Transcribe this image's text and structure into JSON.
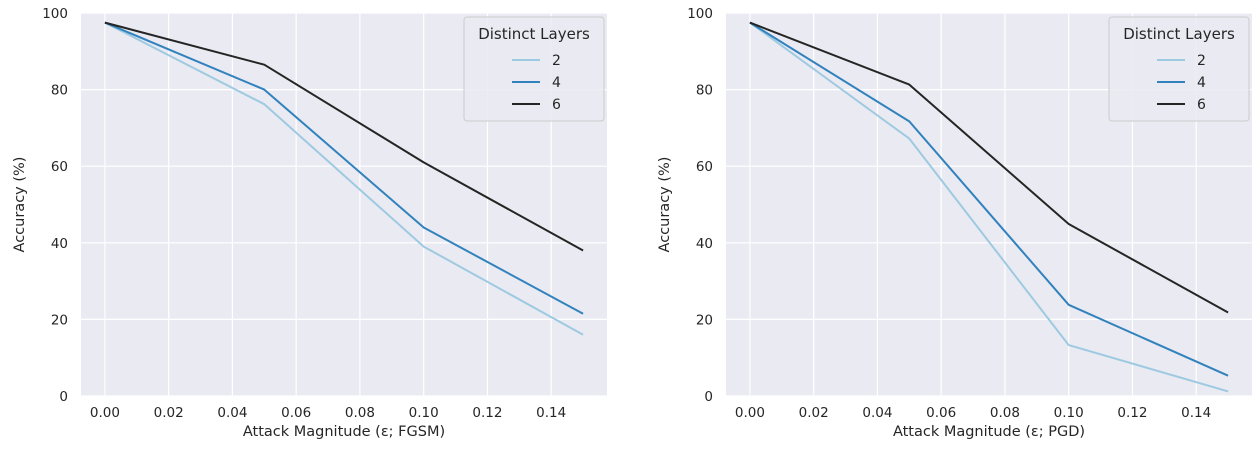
{
  "chart_data": [
    {
      "type": "line",
      "title": "",
      "xlabel": "Attack Magnitude (ε; FGSM)",
      "ylabel": "Accuracy (%)",
      "xlim": [
        -0.0075,
        0.1575
      ],
      "ylim": [
        0,
        100
      ],
      "xticks": [
        "0.00",
        "0.02",
        "0.04",
        "0.06",
        "0.08",
        "0.10",
        "0.12",
        "0.14"
      ],
      "yticks": [
        "0",
        "20",
        "40",
        "60",
        "80",
        "100"
      ],
      "x": [
        0.0,
        0.05,
        0.1,
        0.15
      ],
      "legend_title": "Distinct Layers",
      "legend_position": "top-right",
      "grid": true,
      "background": "#eaeaf2",
      "series": [
        {
          "name": "2",
          "color": "#9ecae1",
          "values": [
            97.5,
            76.2,
            39.0,
            16.0
          ]
        },
        {
          "name": "4",
          "color": "#3182bd",
          "values": [
            97.5,
            80.0,
            44.0,
            21.5
          ]
        },
        {
          "name": "6",
          "color": "#252525",
          "values": [
            97.5,
            86.5,
            61.0,
            38.0
          ]
        }
      ]
    },
    {
      "type": "line",
      "title": "",
      "xlabel": "Attack Magnitude (ε; PGD)",
      "ylabel": "Accuracy (%)",
      "xlim": [
        -0.0075,
        0.1575
      ],
      "ylim": [
        0,
        100
      ],
      "xticks": [
        "0.00",
        "0.02",
        "0.04",
        "0.06",
        "0.08",
        "0.10",
        "0.12",
        "0.14"
      ],
      "yticks": [
        "0",
        "20",
        "40",
        "60",
        "80",
        "100"
      ],
      "x": [
        0.0,
        0.05,
        0.1,
        0.15
      ],
      "legend_title": "Distinct Layers",
      "legend_position": "top-right",
      "grid": true,
      "background": "#eaeaf2",
      "series": [
        {
          "name": "2",
          "color": "#9ecae1",
          "values": [
            97.5,
            67.2,
            13.3,
            1.2
          ]
        },
        {
          "name": "4",
          "color": "#3182bd",
          "values": [
            97.5,
            71.7,
            23.8,
            5.3
          ]
        },
        {
          "name": "6",
          "color": "#252525",
          "values": [
            97.5,
            81.3,
            44.9,
            21.8
          ]
        }
      ]
    }
  ]
}
